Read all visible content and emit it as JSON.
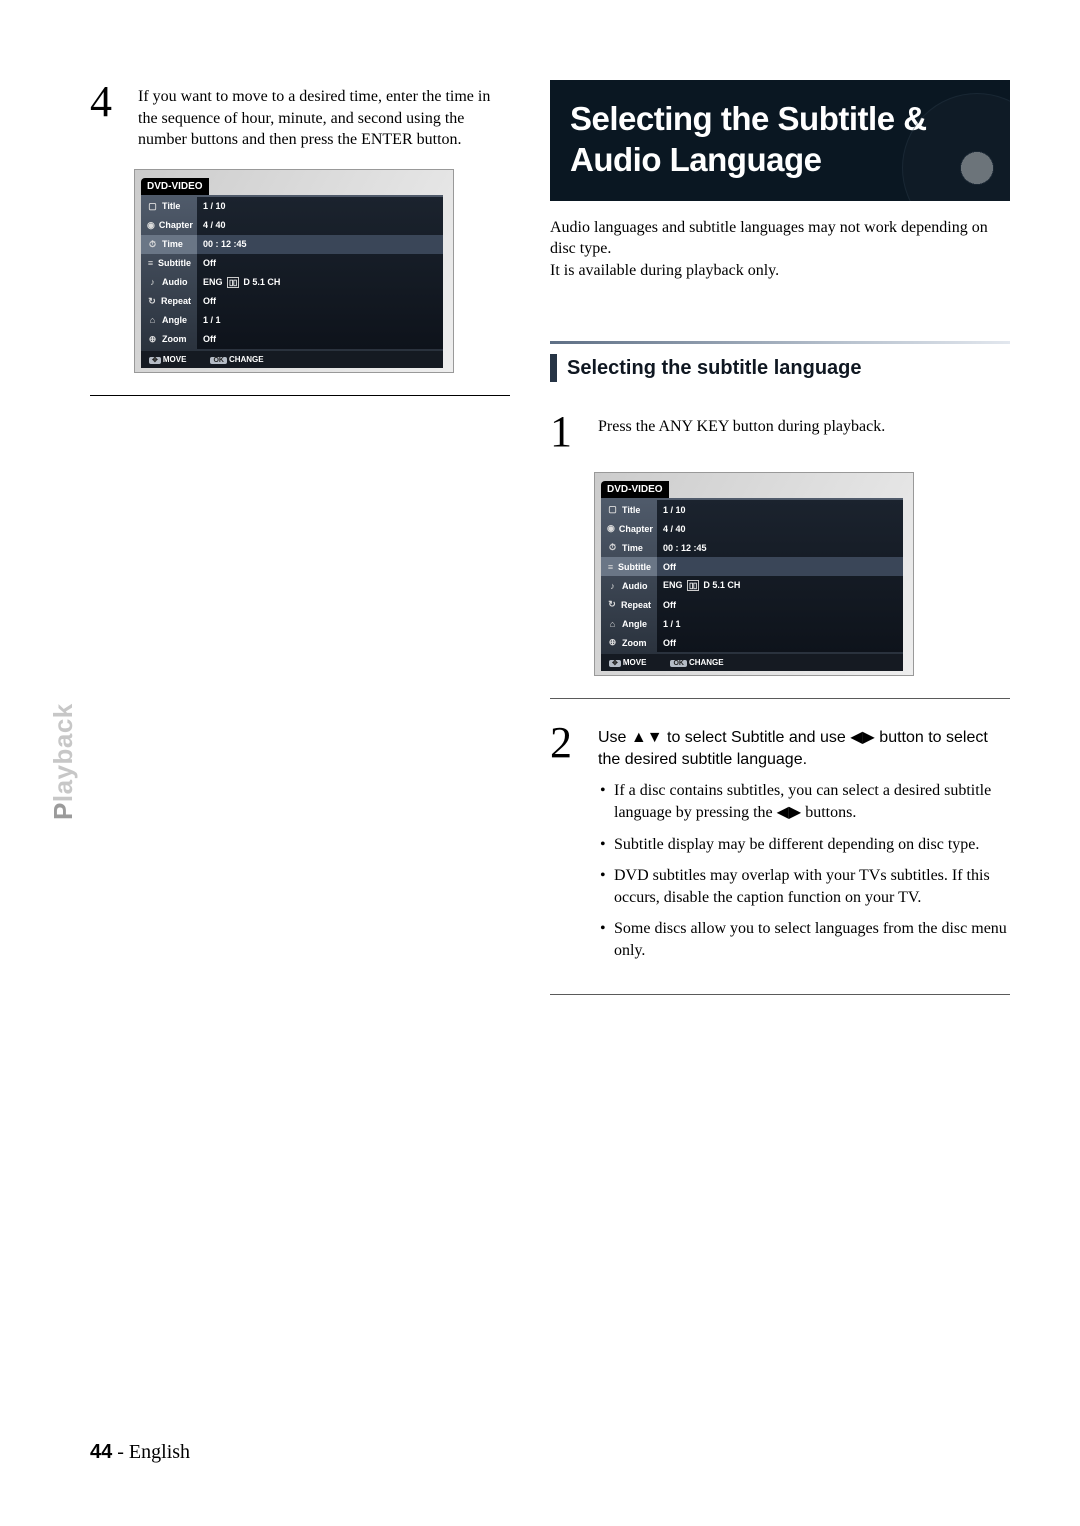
{
  "leftColumn": {
    "step4": {
      "number": "4",
      "text": "If you want to move to a desired time, enter the time in the sequence of hour, minute, and second using the number buttons and then press the ENTER button."
    }
  },
  "rightColumn": {
    "heroTitle": "Selecting the Subtitle & Audio Language",
    "introLine1": "Audio languages and subtitle languages may not work depending on disc type.",
    "introLine2": "It is available during playback only.",
    "subhead": "Selecting the subtitle language",
    "step1": {
      "number": "1",
      "text": "Press the ANY KEY button during playback."
    },
    "step2": {
      "number": "2",
      "lead": "Use ▲▼ to select Subtitle and use ◀▶ button to select the desired subtitle language.",
      "bullets": [
        "If a disc contains subtitles, you can select a desired subtitle language by pressing the ◀▶ buttons.",
        "Subtitle display may be different depending on disc type.",
        "DVD subtitles may overlap with your TVs subtitles. If this occurs, disable the caption function on your TV.",
        "Some discs allow you to select languages from the disc menu only."
      ]
    }
  },
  "osd": {
    "header": "DVD-VIDEO",
    "rows": [
      {
        "icon": "▢",
        "label": "Title",
        "value": "1 / 10"
      },
      {
        "icon": "◉",
        "label": "Chapter",
        "value": "4 / 40"
      },
      {
        "icon": "⏱",
        "label": "Time",
        "value": "00 : 12 :45"
      },
      {
        "icon": "≡",
        "label": "Subtitle",
        "value": "Off"
      },
      {
        "icon": "♪",
        "label": "Audio",
        "value": "ENG ▯▯ D 5.1 CH"
      },
      {
        "icon": "↻",
        "label": "Repeat",
        "value": "Off"
      },
      {
        "icon": "⌂",
        "label": "Angle",
        "value": "1 / 1"
      },
      {
        "icon": "⊕",
        "label": "Zoom",
        "value": "Off"
      }
    ],
    "footer": {
      "move": "MOVE",
      "change": "CHANGE",
      "movePill": "✥",
      "changePill": "OK"
    }
  },
  "osdLeftHighlight": 2,
  "osdRightHighlight": 3,
  "sideLabel": {
    "accent": "P",
    "rest": "layback"
  },
  "footer": {
    "page": "44",
    "sep": " - ",
    "lang": "English"
  }
}
